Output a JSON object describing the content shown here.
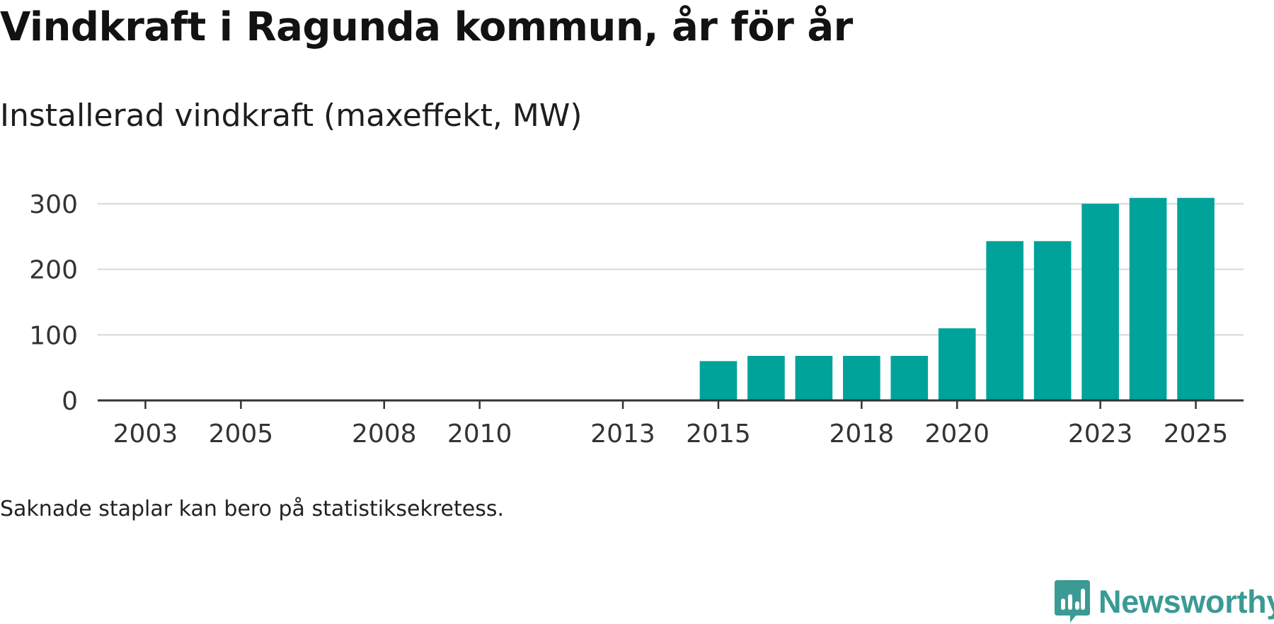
{
  "title": "Vindkraft i Ragunda kommun, år för år",
  "subtitle": "Installerad vindkraft (maxeffekt, MW)",
  "footnote": "Saknade staplar kan bero på statistiksekretess.",
  "brand": {
    "name": "Newsworthy",
    "color": "#3a9a94"
  },
  "colors": {
    "bar": "#00a39a",
    "grid": "#dddddd",
    "axis": "#333333"
  },
  "chart_data": {
    "type": "bar",
    "title": "Installerad vindkraft (maxeffekt, MW)",
    "xlabel": "",
    "ylabel": "",
    "xlim": [
      2002,
      2026
    ],
    "ylim": [
      0,
      300
    ],
    "yticks": [
      0,
      100,
      200,
      300
    ],
    "xticks": [
      2003,
      2005,
      2008,
      2010,
      2013,
      2015,
      2018,
      2020,
      2023,
      2025
    ],
    "grid": true,
    "categories": [
      2015,
      2016,
      2017,
      2018,
      2019,
      2020,
      2021,
      2022,
      2023,
      2024,
      2025
    ],
    "values": [
      60,
      68,
      68,
      68,
      68,
      110,
      243,
      243,
      300,
      309,
      309
    ]
  }
}
